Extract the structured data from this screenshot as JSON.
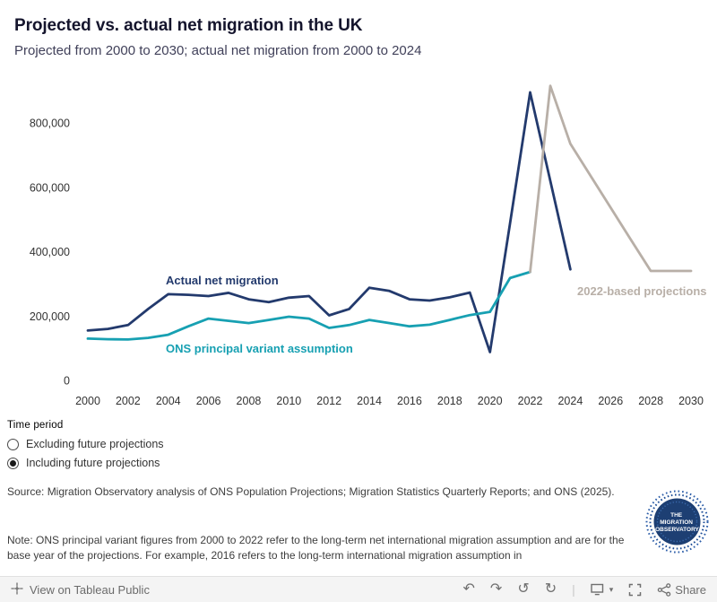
{
  "header": {
    "title": "Projected vs. actual net migration in the UK",
    "subtitle": "Projected from 2000 to 2030; actual net migration from 2000 to 2024"
  },
  "chart_data": {
    "type": "line",
    "title": "Projected vs. actual net migration in the UK",
    "xlabel": "",
    "ylabel": "",
    "ylim": [
      0,
      920000
    ],
    "grid": false,
    "legend": "direct-labels",
    "x_ticks": [
      2000,
      2002,
      2004,
      2006,
      2008,
      2010,
      2012,
      2014,
      2016,
      2018,
      2020,
      2022,
      2024,
      2026,
      2028,
      2030
    ],
    "y_ticks": [
      {
        "value": 0,
        "label": "0"
      },
      {
        "value": 200000,
        "label": "200,000"
      },
      {
        "value": 400000,
        "label": "400,000"
      },
      {
        "value": 600000,
        "label": "600,000"
      },
      {
        "value": 800000,
        "label": "800,000"
      }
    ],
    "series": [
      {
        "id": "actual",
        "name": "Actual net migration",
        "color": "#233a6d",
        "points": [
          [
            2000,
            155000
          ],
          [
            2001,
            160000
          ],
          [
            2002,
            172000
          ],
          [
            2003,
            222000
          ],
          [
            2004,
            268000
          ],
          [
            2005,
            266000
          ],
          [
            2006,
            262000
          ],
          [
            2007,
            272000
          ],
          [
            2008,
            252000
          ],
          [
            2009,
            243000
          ],
          [
            2010,
            257000
          ],
          [
            2011,
            262000
          ],
          [
            2012,
            202000
          ],
          [
            2013,
            222000
          ],
          [
            2014,
            288000
          ],
          [
            2015,
            278000
          ],
          [
            2016,
            252000
          ],
          [
            2017,
            248000
          ],
          [
            2018,
            258000
          ],
          [
            2019,
            273000
          ],
          [
            2020,
            88000
          ],
          [
            2021,
            488000
          ],
          [
            2022,
            895000
          ],
          [
            2023,
            620000
          ],
          [
            2024,
            345000
          ]
        ]
      },
      {
        "id": "ons-assumption",
        "name": "ONS principal variant assumption",
        "color": "#17a0b2",
        "points": [
          [
            2000,
            130000
          ],
          [
            2001,
            128000
          ],
          [
            2002,
            127000
          ],
          [
            2003,
            132000
          ],
          [
            2004,
            142000
          ],
          [
            2005,
            168000
          ],
          [
            2006,
            192000
          ],
          [
            2007,
            185000
          ],
          [
            2008,
            178000
          ],
          [
            2009,
            188000
          ],
          [
            2010,
            198000
          ],
          [
            2011,
            192000
          ],
          [
            2012,
            163000
          ],
          [
            2013,
            172000
          ],
          [
            2014,
            188000
          ],
          [
            2015,
            178000
          ],
          [
            2016,
            168000
          ],
          [
            2017,
            173000
          ],
          [
            2018,
            188000
          ],
          [
            2019,
            203000
          ],
          [
            2020,
            213000
          ],
          [
            2021,
            318000
          ],
          [
            2022,
            337000
          ]
        ]
      },
      {
        "id": "projection-2022",
        "name": "2022-based projections",
        "color": "#b8afa7",
        "points": [
          [
            2022,
            337000
          ],
          [
            2023,
            915000
          ],
          [
            2024,
            735000
          ],
          [
            2025,
            636000
          ],
          [
            2026,
            537000
          ],
          [
            2027,
            438000
          ],
          [
            2028,
            340000
          ],
          [
            2029,
            340000
          ],
          [
            2030,
            340000
          ]
        ]
      }
    ]
  },
  "controls": {
    "label": "Time period",
    "options": [
      {
        "label": "Excluding future projections",
        "selected": false
      },
      {
        "label": "Including future projections",
        "selected": true
      }
    ]
  },
  "notes": {
    "source": "Source: Migration Observatory analysis of ONS Population Projections; Migration Statistics Quarterly Reports; and ONS (2025).",
    "note": "Note: ONS principal variant figures from 2000 to 2022 refer to the long-term net international migration assumption and are for the base year of the projections. For example, 2016 refers to the long-term international migration assumption in"
  },
  "logo": {
    "lines": [
      "THE",
      "MIGRATION",
      "OBSERVATORY"
    ],
    "color": "#1d3f73"
  },
  "toolbar": {
    "view_label": "View on Tableau Public",
    "share_label": "Share",
    "separator": "|",
    "undo_glyph": "↶",
    "redo_glyph": "↷",
    "reset_glyph": "↺",
    "refresh_glyph": "↻",
    "caret_glyph": "▾"
  }
}
